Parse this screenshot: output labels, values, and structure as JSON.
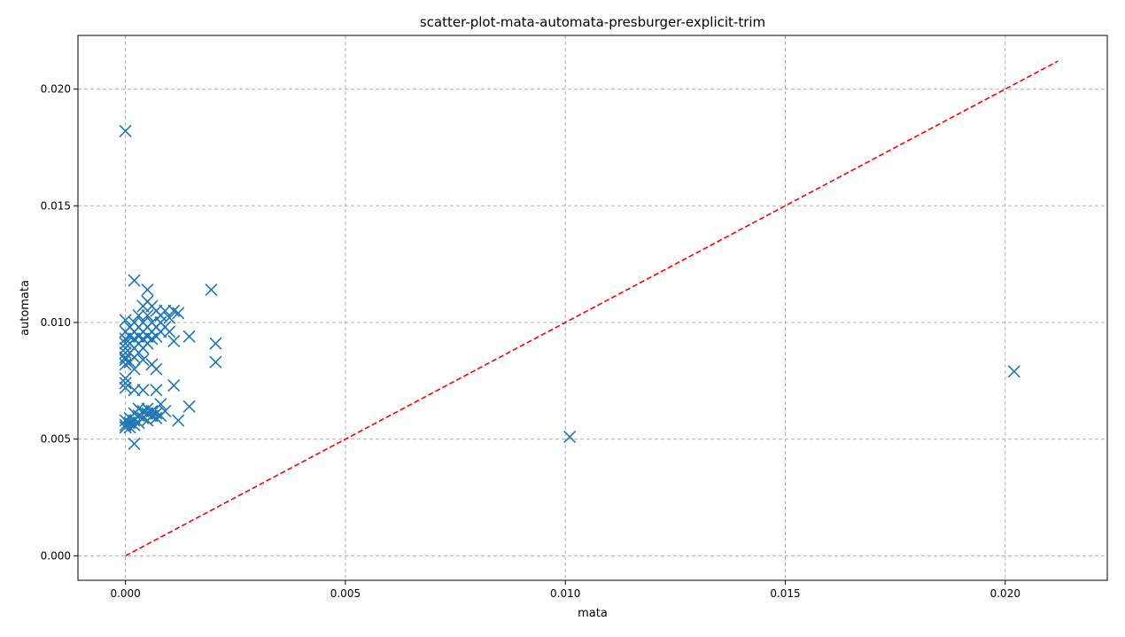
{
  "chart_data": {
    "type": "scatter",
    "title": "scatter-plot-mata-automata-presburger-explicit-trim",
    "xlabel": "mata",
    "ylabel": "automata",
    "xlim": [
      -0.00108,
      0.02232
    ],
    "ylim": [
      -0.00105,
      0.0223
    ],
    "xticks": [
      0.0,
      0.005,
      0.01,
      0.015,
      0.02
    ],
    "yticks": [
      0.0,
      0.005,
      0.01,
      0.015,
      0.02
    ],
    "xtick_labels": [
      "0.000",
      "0.005",
      "0.010",
      "0.015",
      "0.020"
    ],
    "ytick_labels": [
      "0.000",
      "0.005",
      "0.010",
      "0.015",
      "0.020"
    ],
    "grid": true,
    "marker": "x",
    "marker_color": "#1f77b4",
    "reference_line": {
      "style": "dashed",
      "color": "#ff0000",
      "from": [
        0.0,
        0.0
      ],
      "to": [
        0.0212,
        0.0212
      ]
    },
    "series": [
      {
        "points": [
          [
            0.0,
            0.0182
          ],
          [
            0.0002,
            0.0118
          ],
          [
            0.00195,
            0.0114
          ],
          [
            0.0005,
            0.0114
          ],
          [
            0.0005,
            0.0109
          ],
          [
            0.0004,
            0.0107
          ],
          [
            0.0006,
            0.0107
          ],
          [
            0.0007,
            0.0105
          ],
          [
            0.0009,
            0.0105
          ],
          [
            0.0011,
            0.0105
          ],
          [
            0.0012,
            0.0104
          ],
          [
            0.0003,
            0.0103
          ],
          [
            0.0005,
            0.0103
          ],
          [
            0.0008,
            0.0103
          ],
          [
            0.001,
            0.0102
          ],
          [
            0.0,
            0.0101
          ],
          [
            0.0002,
            0.01
          ],
          [
            0.0004,
            0.01
          ],
          [
            0.0006,
            0.01
          ],
          [
            0.0008,
            0.01
          ],
          [
            0.0001,
            0.0098
          ],
          [
            0.0003,
            0.0098
          ],
          [
            0.0005,
            0.0098
          ],
          [
            0.0007,
            0.0098
          ],
          [
            0.0009,
            0.0098
          ],
          [
            0.0,
            0.0096
          ],
          [
            0.0002,
            0.0096
          ],
          [
            0.0004,
            0.0096
          ],
          [
            0.0006,
            0.0096
          ],
          [
            0.0008,
            0.0096
          ],
          [
            0.001,
            0.0096
          ],
          [
            0.0001,
            0.0094
          ],
          [
            0.0003,
            0.0094
          ],
          [
            0.0005,
            0.0094
          ],
          [
            0.0007,
            0.0094
          ],
          [
            0.00145,
            0.0094
          ],
          [
            0.0,
            0.0093
          ],
          [
            0.0002,
            0.0093
          ],
          [
            0.0004,
            0.0093
          ],
          [
            0.0006,
            0.0093
          ],
          [
            0.0011,
            0.0092
          ],
          [
            0.00205,
            0.0091
          ],
          [
            0.0,
            0.0091
          ],
          [
            0.0001,
            0.0091
          ],
          [
            0.0003,
            0.0091
          ],
          [
            0.0005,
            0.0091
          ],
          [
            0.0,
            0.0089
          ],
          [
            0.0002,
            0.0089
          ],
          [
            0.0004,
            0.0089
          ],
          [
            0.0,
            0.0087
          ],
          [
            0.0001,
            0.0087
          ],
          [
            0.0003,
            0.0087
          ],
          [
            0.0,
            0.0085
          ],
          [
            0.0002,
            0.0085
          ],
          [
            0.0,
            0.0084
          ],
          [
            0.0004,
            0.0084
          ],
          [
            0.00205,
            0.0083
          ],
          [
            0.0001,
            0.0083
          ],
          [
            0.0006,
            0.0082
          ],
          [
            0.0,
            0.0082
          ],
          [
            0.0007,
            0.008
          ],
          [
            0.0002,
            0.008
          ],
          [
            0.0,
            0.0076
          ],
          [
            0.0,
            0.0074
          ],
          [
            0.0011,
            0.0073
          ],
          [
            0.0,
            0.0072
          ],
          [
            0.0004,
            0.0071
          ],
          [
            0.0007,
            0.0071
          ],
          [
            0.0002,
            0.0071
          ],
          [
            0.0008,
            0.0065
          ],
          [
            0.00145,
            0.0064
          ],
          [
            0.0003,
            0.0063
          ],
          [
            0.0005,
            0.0063
          ],
          [
            0.0004,
            0.0062
          ],
          [
            0.0006,
            0.0062
          ],
          [
            0.0009,
            0.0062
          ],
          [
            0.0002,
            0.0061
          ],
          [
            0.0005,
            0.0061
          ],
          [
            0.0007,
            0.0061
          ],
          [
            0.0003,
            0.006
          ],
          [
            0.0006,
            0.006
          ],
          [
            0.0008,
            0.006
          ],
          [
            0.0001,
            0.0059
          ],
          [
            0.0004,
            0.0059
          ],
          [
            0.0007,
            0.0059
          ],
          [
            0.0,
            0.0058
          ],
          [
            0.0002,
            0.0058
          ],
          [
            0.0005,
            0.0058
          ],
          [
            0.0012,
            0.0058
          ],
          [
            0.0001,
            0.0057
          ],
          [
            0.0003,
            0.0057
          ],
          [
            0.0,
            0.0056
          ],
          [
            0.0002,
            0.0056
          ],
          [
            0.0,
            0.0055
          ],
          [
            0.0001,
            0.0055
          ],
          [
            0.0002,
            0.0048
          ],
          [
            0.0101,
            0.0051
          ],
          [
            0.0202,
            0.0079
          ]
        ]
      }
    ]
  }
}
